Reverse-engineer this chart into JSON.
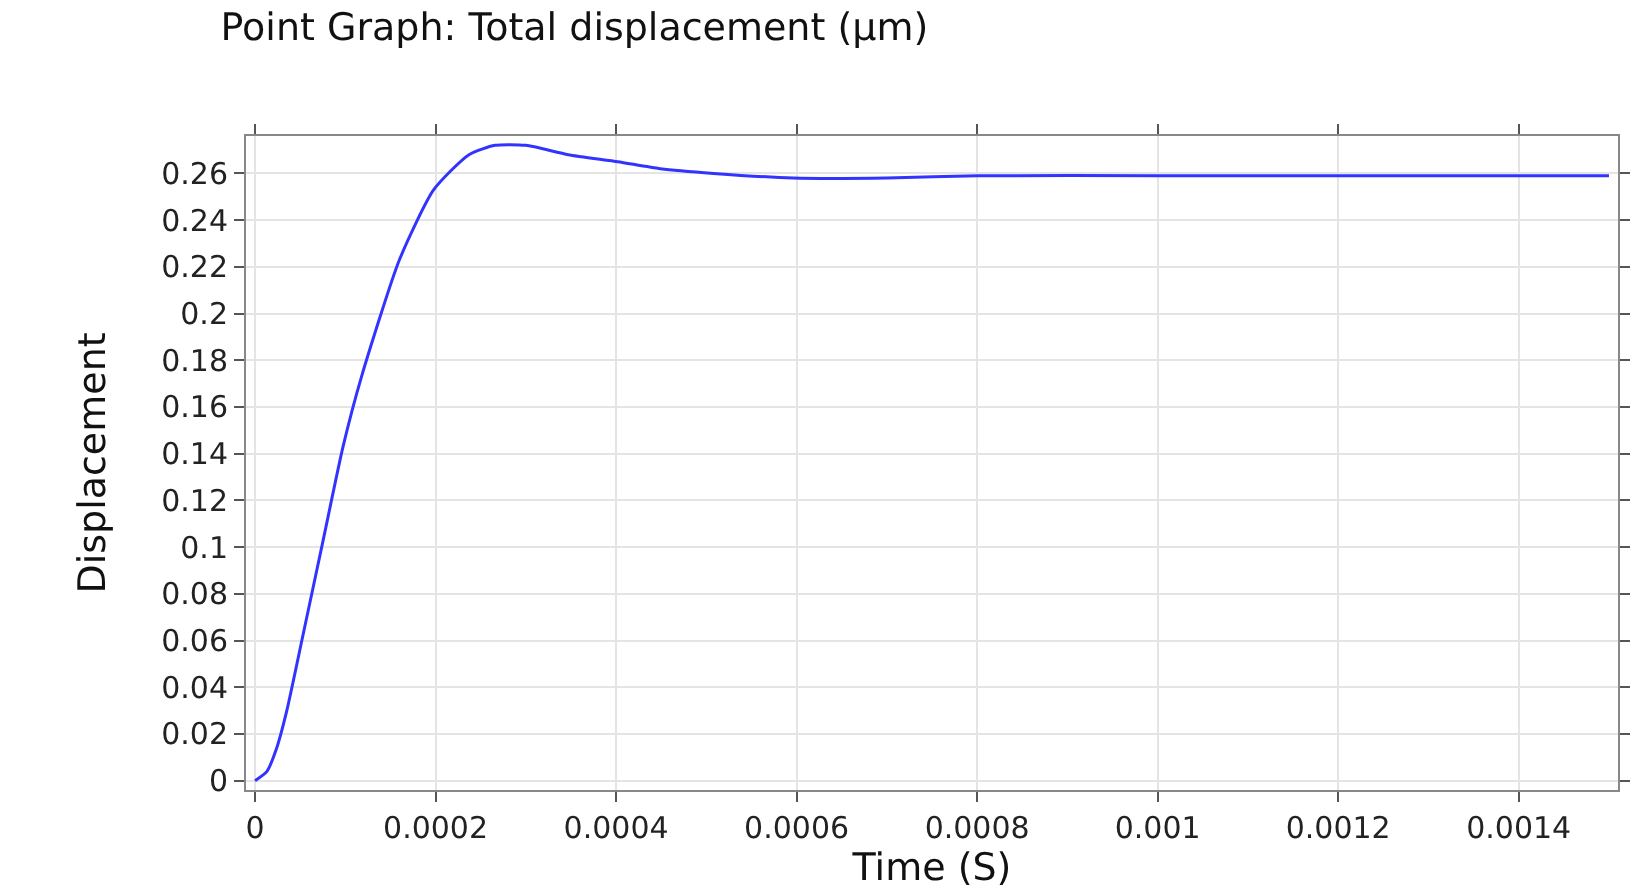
{
  "chart_data": {
    "type": "line",
    "title": "Point Graph: Total displacement (µm)",
    "xlabel": "Time (S)",
    "ylabel": "Displacement",
    "x": [
      0,
      1.32e-05,
      2.4e-05,
      3.52e-05,
      5.35e-05,
      7.55e-05,
      9.75e-05,
      0.000118,
      0.00016,
      0.000198,
      0.000237,
      0.000266,
      0.0003,
      0.000347,
      0.000402,
      0.000449,
      0.000508,
      0.000596,
      0.0007,
      0.0008,
      0.001,
      0.0012,
      0.0015
    ],
    "series": [
      {
        "color": "#3333ff",
        "values": [
          0,
          0.004,
          0.014,
          0.03,
          0.063,
          0.103,
          0.143,
          0.173,
          0.223,
          0.253,
          0.268,
          0.272,
          0.272,
          0.268,
          0.265,
          0.262,
          0.26,
          0.258,
          0.258,
          0.259,
          0.259,
          0.259,
          0.259
        ]
      }
    ],
    "xlim": [
      -1e-05,
      0.00151
    ],
    "ylim": [
      -0.004,
      0.276
    ],
    "xticks": [
      0,
      0.0002,
      0.0004,
      0.0006,
      0.0008,
      0.001,
      0.0012,
      0.0014
    ],
    "yticks": [
      0,
      0.02,
      0.04,
      0.06,
      0.08,
      0.1,
      0.12,
      0.14,
      0.16,
      0.18,
      0.2,
      0.22,
      0.24,
      0.26
    ],
    "grid": true,
    "marker": "none",
    "line_style": "solid"
  }
}
